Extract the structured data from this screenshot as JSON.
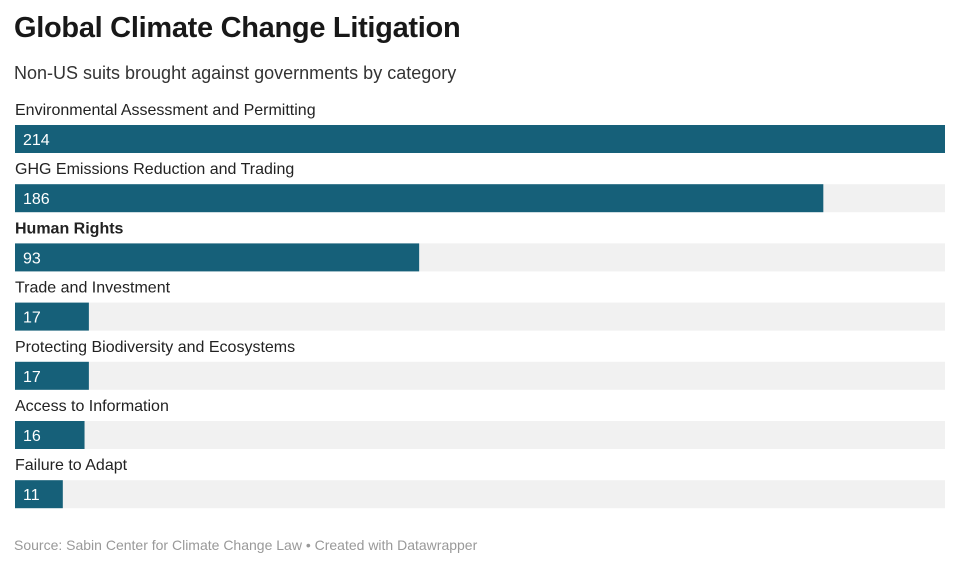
{
  "header": {
    "title": "Global Climate Change Litigation",
    "subtitle": "Non-US suits brought against governments by category"
  },
  "footer": {
    "source": "Source: Sabin Center for Climate Change Law",
    "separator": " • ",
    "credit": "Created with Datawrapper"
  },
  "colors": {
    "bar": "#166079",
    "track": "#f1f1f1",
    "value_text": "#ffffff"
  },
  "chart_data": {
    "type": "bar",
    "orientation": "horizontal",
    "categories": [
      "Environmental Assessment and Permitting",
      "GHG Emissions Reduction and Trading",
      "Human Rights",
      "Trade and Investment",
      "Protecting Biodiversity and Ecosystems",
      "Access to Information",
      "Failure to Adapt"
    ],
    "values": [
      214,
      186,
      93,
      17,
      17,
      16,
      11
    ],
    "emphasized_category": "Human Rights",
    "xlim": [
      0,
      214
    ],
    "value_labels": "inside-left",
    "grid": false,
    "legend": "none"
  }
}
